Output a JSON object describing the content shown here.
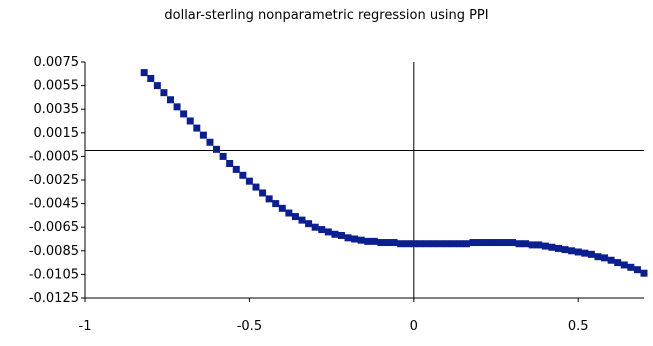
{
  "chart_data": {
    "type": "scatter",
    "title": "dollar-sterling nonparametric regression using PPI",
    "xlabel": "",
    "ylabel": "",
    "xlim": [
      -1,
      0.7
    ],
    "ylim": [
      -0.0125,
      0.0075
    ],
    "x_ticks": [
      "-1",
      "-0.5",
      "0",
      "0.5"
    ],
    "x_tick_values": [
      -1,
      -0.5,
      0,
      0.5
    ],
    "y_ticks": [
      "0.0075",
      "0.0055",
      "0.0035",
      "0.0015",
      "-0.0005",
      "-0.0025",
      "-0.0045",
      "-0.0065",
      "-0.0085",
      "-0.0105",
      "-0.0125"
    ],
    "y_tick_values": [
      0.0075,
      0.0055,
      0.0035,
      0.0015,
      -0.0005,
      -0.0025,
      -0.0045,
      -0.0065,
      -0.0085,
      -0.0105,
      -0.0125
    ],
    "grid": false,
    "legend": "none",
    "marker_color": "#0b1f8f",
    "series": [
      {
        "x": [
          -0.82,
          -0.8,
          -0.78,
          -0.76,
          -0.74,
          -0.72,
          -0.7,
          -0.68,
          -0.66,
          -0.64,
          -0.62,
          -0.6,
          -0.58,
          -0.56,
          -0.54,
          -0.52,
          -0.5,
          -0.48,
          -0.46,
          -0.44,
          -0.42,
          -0.4,
          -0.38,
          -0.36,
          -0.34,
          -0.32,
          -0.3,
          -0.28,
          -0.26,
          -0.24,
          -0.22,
          -0.2,
          -0.18,
          -0.16,
          -0.14,
          -0.12,
          -0.1,
          -0.08,
          -0.06,
          -0.04,
          -0.02,
          0.0,
          0.02,
          0.04,
          0.06,
          0.08,
          0.1,
          0.12,
          0.14,
          0.16,
          0.18,
          0.2,
          0.22,
          0.24,
          0.26,
          0.28,
          0.3,
          0.32,
          0.34,
          0.36,
          0.38,
          0.4,
          0.42,
          0.44,
          0.46,
          0.48,
          0.5,
          0.52,
          0.54,
          0.56,
          0.58,
          0.6,
          0.62,
          0.64,
          0.66,
          0.68,
          0.7
        ],
        "y": [
          0.0066,
          0.0061,
          0.0055,
          0.0049,
          0.0043,
          0.0037,
          0.0031,
          0.0025,
          0.0019,
          0.0013,
          0.0007,
          0.0001,
          -0.0005,
          -0.0011,
          -0.0016,
          -0.0021,
          -0.0026,
          -0.0031,
          -0.0036,
          -0.0041,
          -0.0045,
          -0.0049,
          -0.0053,
          -0.0056,
          -0.0059,
          -0.0062,
          -0.0065,
          -0.0067,
          -0.0069,
          -0.0071,
          -0.0072,
          -0.0074,
          -0.0075,
          -0.0076,
          -0.0077,
          -0.0077,
          -0.0078,
          -0.0078,
          -0.0078,
          -0.0079,
          -0.0079,
          -0.0079,
          -0.0079,
          -0.0079,
          -0.0079,
          -0.0079,
          -0.0079,
          -0.0079,
          -0.0079,
          -0.0079,
          -0.0078,
          -0.0078,
          -0.0078,
          -0.0078,
          -0.0078,
          -0.0078,
          -0.0078,
          -0.0079,
          -0.0079,
          -0.008,
          -0.008,
          -0.0081,
          -0.0082,
          -0.0083,
          -0.0084,
          -0.0085,
          -0.0086,
          -0.0087,
          -0.0088,
          -0.009,
          -0.0091,
          -0.0093,
          -0.0095,
          -0.0097,
          -0.0099,
          -0.0101,
          -0.0104
        ]
      }
    ]
  }
}
